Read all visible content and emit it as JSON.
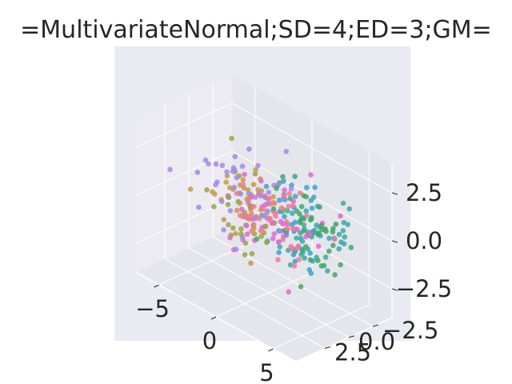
{
  "chart_data": {
    "type": "scatter",
    "title": "=MultivariateNormal;SD=4;ED=3;GM=",
    "projection": "3d",
    "grid": true,
    "xlim": [
      -7,
      7
    ],
    "ylim": [
      -4.5,
      5.5
    ],
    "zlim": [
      -4,
      4
    ],
    "x_ticks": [
      -5,
      0,
      5
    ],
    "x_tick_labels": [
      "−5",
      "0",
      "5"
    ],
    "y_ticks": [
      -2.5,
      0.0,
      2.5
    ],
    "y_tick_labels": [
      "−2.5",
      "0.0",
      "2.5"
    ],
    "z_ticks": [
      -2.5,
      0.0,
      2.5
    ],
    "z_tick_labels": [
      "−2.5",
      "0.0",
      "2.5"
    ],
    "xlabel": "",
    "ylabel": "",
    "zlabel": "",
    "colors": {
      "pane": "#eaeaf2",
      "grid": "#ffffff",
      "text": "#262626"
    },
    "series": [
      {
        "color": "#ee7b94",
        "center": [
          2.2,
          2.0,
          0.9
        ],
        "spread": [
          1.6,
          1.3,
          1.0
        ],
        "count": 38
      },
      {
        "color": "#c79a48",
        "center": [
          -3.2,
          -1.2,
          -0.6
        ],
        "spread": [
          1.5,
          1.1,
          0.9
        ],
        "count": 34
      },
      {
        "color": "#9aa544",
        "center": [
          -1.2,
          0.6,
          0.2
        ],
        "spread": [
          1.7,
          1.4,
          1.2
        ],
        "count": 36
      },
      {
        "color": "#44a866",
        "center": [
          3.5,
          -0.2,
          0.6
        ],
        "spread": [
          1.5,
          1.2,
          1.1
        ],
        "count": 40
      },
      {
        "color": "#3daaa0",
        "center": [
          2.8,
          -1.6,
          -0.4
        ],
        "spread": [
          1.6,
          1.1,
          1.0
        ],
        "count": 40
      },
      {
        "color": "#3aa4c8",
        "center": [
          0.6,
          -2.6,
          -1.0
        ],
        "spread": [
          1.8,
          1.0,
          1.0
        ],
        "count": 42
      },
      {
        "color": "#a58ae6",
        "center": [
          -0.8,
          1.6,
          1.1
        ],
        "spread": [
          1.7,
          1.3,
          1.0
        ],
        "count": 42
      },
      {
        "color": "#e068d4",
        "center": [
          0.4,
          0.2,
          0.2
        ],
        "spread": [
          1.9,
          1.5,
          1.0
        ],
        "count": 46
      }
    ]
  }
}
